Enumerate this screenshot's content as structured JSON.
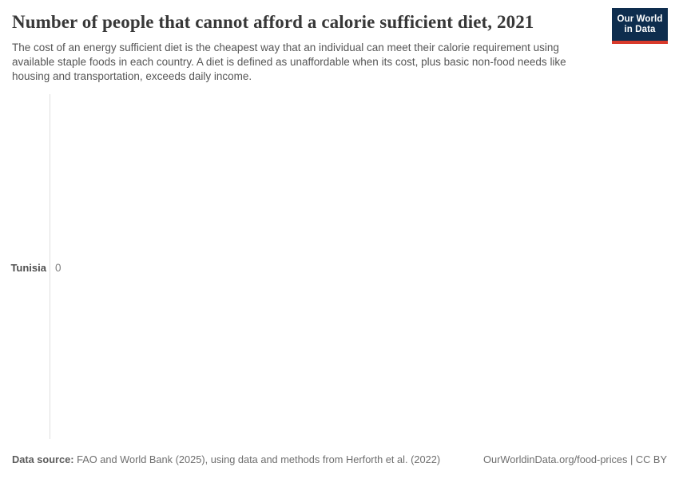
{
  "header": {
    "title": "Number of people that cannot afford a calorie sufficient diet, 2021",
    "subtitle": "The cost of an energy sufficient diet is the cheapest way that an individual can meet their calorie requirement using available staple foods in each country. A diet is defined as unaffordable when its cost, plus basic non-food needs like housing and transportation, exceeds daily income.",
    "logo_line1": "Our World",
    "logo_line2": "in Data"
  },
  "chart_data": {
    "type": "bar",
    "orientation": "horizontal",
    "title": "Number of people that cannot afford a calorie sufficient diet",
    "year": "2021",
    "categories": [
      "Tunisia"
    ],
    "values": [
      0
    ],
    "value_labels": [
      "0"
    ],
    "xlabel": "",
    "ylabel": "",
    "grid": false,
    "legend": false
  },
  "footer": {
    "source_label": "Data source:",
    "source_text": " FAO and World Bank (2025), using data and methods from Herforth et al. (2022)",
    "citation": "OurWorldinData.org/food-prices | CC BY"
  },
  "colors": {
    "title_text": "#383838",
    "subtitle_text": "#565656",
    "entity_label": "#4f4f4f",
    "value_label": "#7f7f7f",
    "axis_line": "#dedede",
    "footer_text": "#6e6e6e",
    "logo_background": "#0e2d4e",
    "logo_accent_red": "#d93a2b",
    "logo_text": "#ffffff"
  }
}
